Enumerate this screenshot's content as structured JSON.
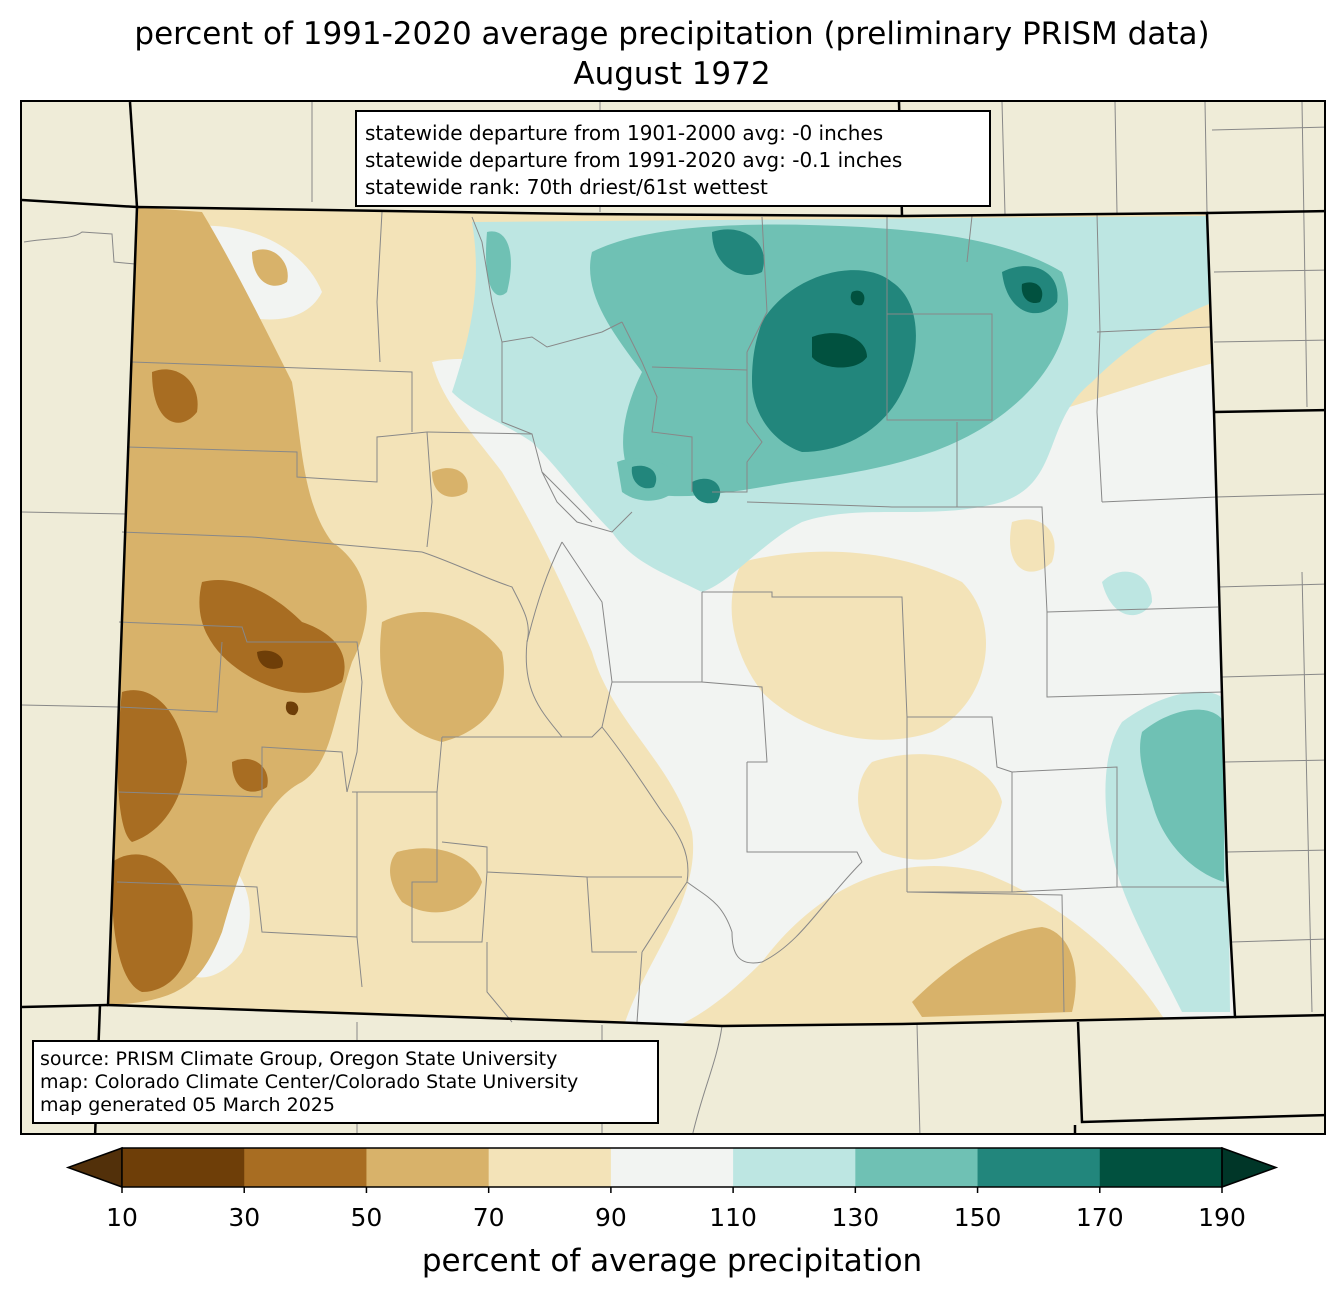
{
  "title": {
    "line1": "percent of 1991-2020 average precipitation (preliminary PRISM data)",
    "line2": "August 1972"
  },
  "stats": [
    "statewide departure from 1901-2000 avg: -0 inches",
    "statewide departure from 1991-2020 avg: -0.1 inches",
    "statewide rank: 70th driest/61st wettest"
  ],
  "source": [
    "source: PRISM Climate Group, Oregon State University",
    "map: Colorado Climate Center/Colorado State University",
    "map generated 05 March 2025"
  ],
  "colorbar": {
    "label": "percent of average precipitation",
    "ticks": [
      "10",
      "30",
      "50",
      "70",
      "90",
      "110",
      "130",
      "150",
      "170",
      "190"
    ],
    "colors": [
      "#6e3e08",
      "#a86d22",
      "#d8b26a",
      "#f3e3b8",
      "#f2f4f2",
      "#bde6e2",
      "#6fc1b4",
      "#22867c",
      "#01513f"
    ],
    "under_color": "#52300a",
    "over_color": "#003628"
  },
  "map_colors": {
    "background": "#efecd8",
    "state_border": "#000000",
    "county_line": "#888888"
  }
}
